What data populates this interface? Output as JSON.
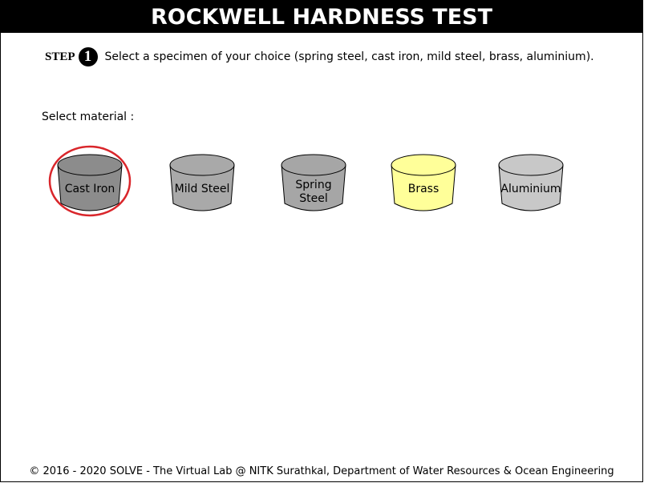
{
  "title": "ROCKWELL HARDNESS TEST",
  "step": {
    "word": "STEP",
    "number": "1",
    "instruction": "Select a specimen of your choice (spring steel, cast iron, mild steel, brass, aluminium)."
  },
  "select_label": "Select material :",
  "specimens": [
    {
      "line1": "Cast Iron",
      "line2": "",
      "fill": "#8c8c8c",
      "selected": true
    },
    {
      "line1": "Mild Steel",
      "line2": "",
      "fill": "#a9a9a9",
      "selected": false
    },
    {
      "line1": "Spring",
      "line2": "Steel",
      "fill": "#a6a6a6",
      "selected": false
    },
    {
      "line1": "Brass",
      "line2": "",
      "fill": "#ffff99",
      "selected": false
    },
    {
      "line1": "Aluminium",
      "line2": "",
      "fill": "#c8c8c8",
      "selected": false
    }
  ],
  "colors": {
    "highlight": "#d9262b",
    "title_bg": "#000000"
  },
  "footer": "© 2016 - 2020 SOLVE - The Virtual Lab @ NITK Surathkal, Department of Water Resources & Ocean Engineering"
}
